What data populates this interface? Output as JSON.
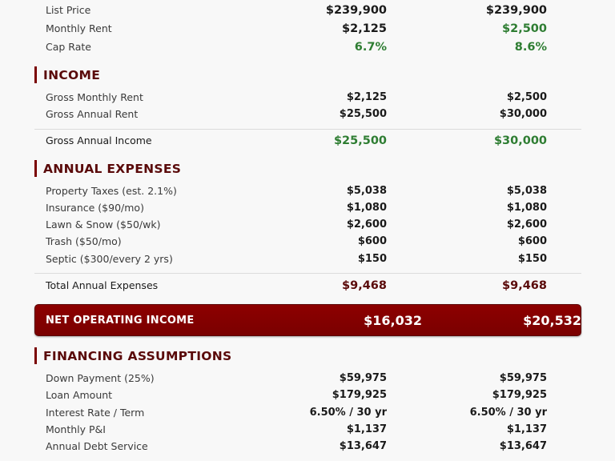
{
  "summary": [
    {
      "label": "List Price",
      "v1": "$239,900",
      "v2": "$239,900"
    },
    {
      "label": "Monthly Rent",
      "v1": "$2,125",
      "v2": "$2,500"
    },
    {
      "label": "Cap Rate",
      "v1": "6.7%",
      "v2": "8.6%"
    }
  ],
  "income": {
    "title": "INCOME",
    "items": [
      {
        "label": "Gross Monthly Rent",
        "v1": "$2,125",
        "v2": "$2,500"
      },
      {
        "label": "Gross Annual Rent",
        "v1": "$25,500",
        "v2": "$30,000"
      }
    ],
    "total": {
      "label": "Gross Annual Income",
      "v1": "$25,500",
      "v2": "$30,000"
    }
  },
  "expenses": {
    "title": "ANNUAL EXPENSES",
    "items": [
      {
        "label": "Property Taxes (est. 2.1%)",
        "v1": "$5,038",
        "v2": "$5,038"
      },
      {
        "label": "Insurance ($90/mo)",
        "v1": "$1,080",
        "v2": "$1,080"
      },
      {
        "label": "Lawn & Snow ($50/wk)",
        "v1": "$2,600",
        "v2": "$2,600"
      },
      {
        "label": "Trash ($50/mo)",
        "v1": "$600",
        "v2": "$600"
      },
      {
        "label": "Septic ($300/every 2 yrs)",
        "v1": "$150",
        "v2": "$150"
      }
    ],
    "total": {
      "label": "Total Annual Expenses",
      "v1": "$9,468",
      "v2": "$9,468"
    }
  },
  "noi": {
    "label": "NET OPERATING INCOME",
    "v1": "$16,032",
    "v2": "$20,532"
  },
  "financing": {
    "title": "FINANCING ASSUMPTIONS",
    "items": [
      {
        "label": "Down Payment (25%)",
        "v1": "$59,975",
        "v2": "$59,975"
      },
      {
        "label": "Loan Amount",
        "v1": "$179,925",
        "v2": "$179,925"
      },
      {
        "label": "Interest Rate / Term",
        "v1": "6.50% / 30 yr",
        "v2": "6.50% / 30 yr"
      },
      {
        "label": "Monthly P&I",
        "v1": "$1,137",
        "v2": "$1,137"
      },
      {
        "label": "Annual Debt Service",
        "v1": "$13,647",
        "v2": "$13,647"
      }
    ]
  },
  "colors": {
    "accent": "#7a0000",
    "positive": "#2e7d32",
    "heading": "#5a0a0a"
  }
}
